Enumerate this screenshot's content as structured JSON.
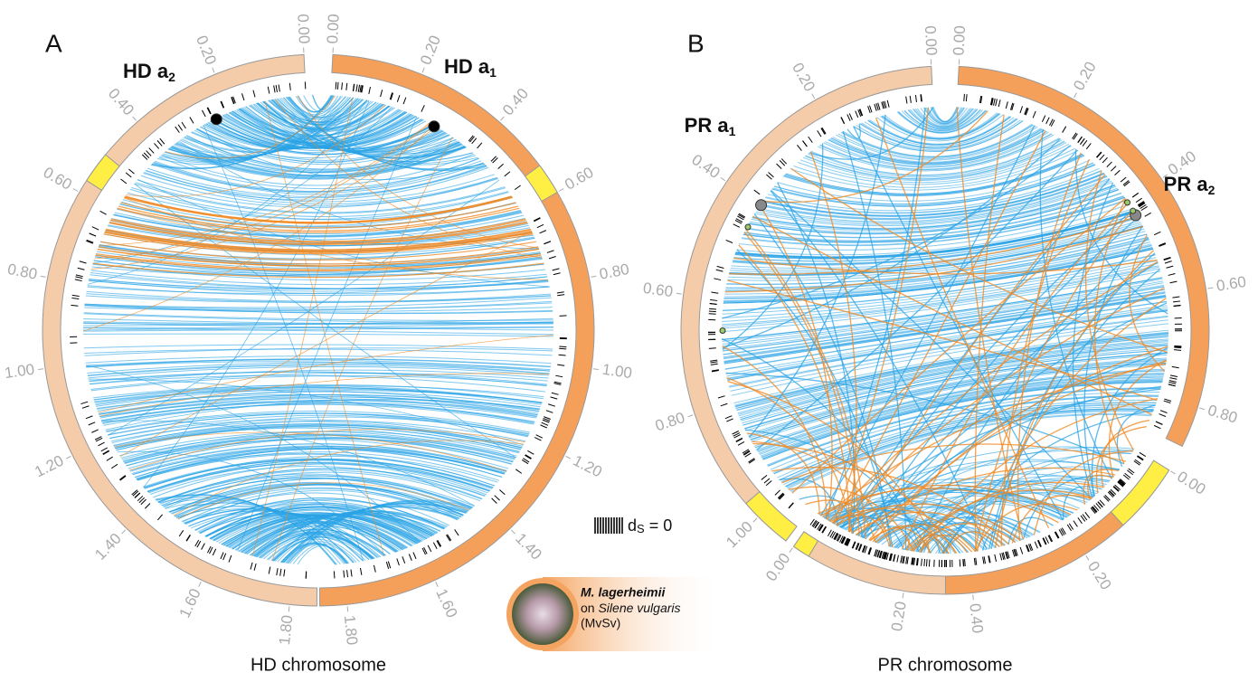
{
  "panels": [
    {
      "letter": "A",
      "caption": "HD chromosome",
      "segments": [
        {
          "name": "HD a",
          "sub": "1",
          "ticks": [
            "0.00",
            "0.20",
            "0.40",
            "0.60",
            "0.80",
            "1.00",
            "1.20",
            "1.40",
            "1.60",
            "1.80"
          ]
        },
        {
          "name": "HD a",
          "sub": "2",
          "ticks": [
            "0.00",
            "0.20",
            "0.40",
            "0.60",
            "0.80",
            "1.00",
            "1.20",
            "1.40",
            "1.60",
            "1.80"
          ]
        }
      ]
    },
    {
      "letter": "B",
      "caption": "PR chromosome",
      "segments": [
        {
          "name": "PR a",
          "sub": "2",
          "ticks": [
            "0.00",
            "0.20",
            "0.40",
            "0.60",
            "0.80"
          ]
        },
        {
          "name": "PR a",
          "sub": "1",
          "ticks": [
            "0.00",
            "0.20",
            "0.40",
            "0.60",
            "0.80",
            "1.00"
          ]
        },
        {
          "ticks": [
            "0.00",
            "0.20",
            "0.40"
          ]
        },
        {
          "ticks": [
            "0.00",
            "0.20"
          ]
        }
      ]
    }
  ],
  "legend": {
    "symbol": "d",
    "sub": "S",
    "suffix": " = 0"
  },
  "inset": {
    "species": "M. lagerheimii",
    "host_prefix": "on ",
    "host": "Silene vulgaris",
    "code": "(MvSv)"
  }
}
